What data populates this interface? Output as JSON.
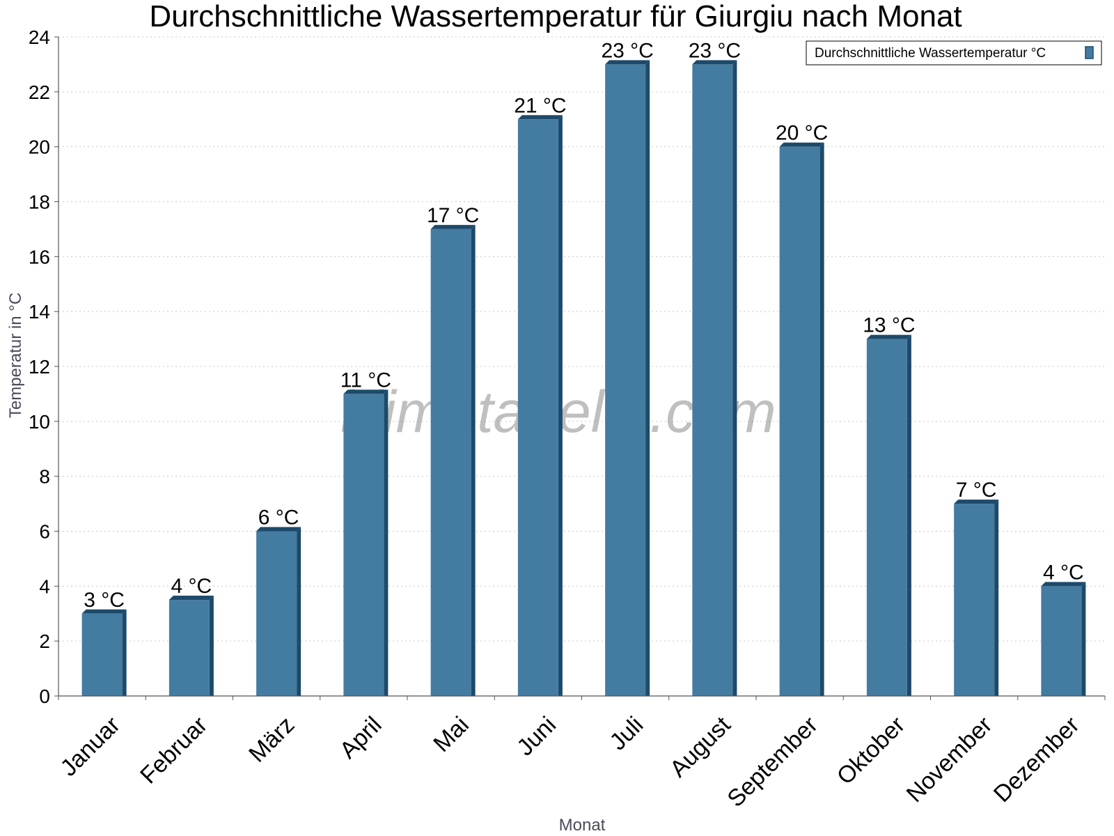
{
  "chart_data": {
    "type": "bar",
    "title": "Durchschnittliche Wassertemperatur für Giurgiu nach Monat",
    "xlabel": "Monat",
    "ylabel": "Temperatur in °C",
    "ylim": [
      0,
      24
    ],
    "yticks": [
      0,
      2,
      4,
      6,
      8,
      10,
      12,
      14,
      16,
      18,
      20,
      22,
      24
    ],
    "grid": true,
    "legend_position": "top-right",
    "categories": [
      "Januar",
      "Februar",
      "März",
      "April",
      "Mai",
      "Juni",
      "Juli",
      "August",
      "September",
      "Oktober",
      "November",
      "Dezember"
    ],
    "series": [
      {
        "name": "Durchschnittliche Wassertemperatur °C",
        "color": "#447ba1",
        "values": [
          3,
          3.5,
          6,
          11,
          17,
          21,
          23,
          23,
          20,
          13,
          7,
          4
        ],
        "labels": [
          "3 °C",
          "4 °C",
          "6 °C",
          "11 °C",
          "17 °C",
          "21 °C",
          "23 °C",
          "23 °C",
          "20 °C",
          "13 °C",
          "7 °C",
          "4 °C"
        ]
      }
    ]
  },
  "watermark": "klimatabelle.com"
}
